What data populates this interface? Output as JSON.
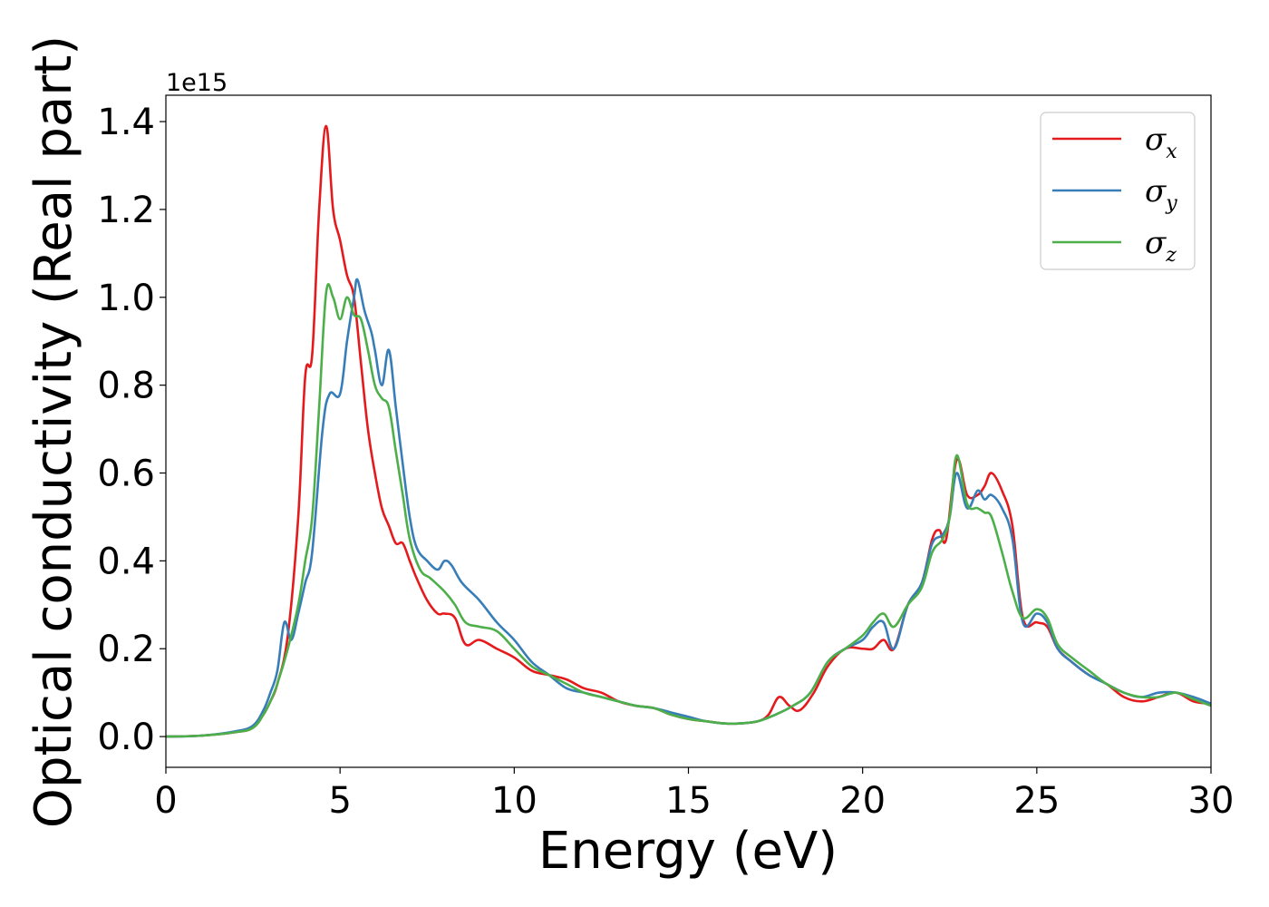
{
  "chart_data": {
    "type": "line",
    "xlabel": "Energy (eV)",
    "ylabel": "Optical conductivity (Real part)",
    "y_offset_label": "1e15",
    "xlim": [
      0,
      30
    ],
    "ylim": [
      -0.07,
      1.46
    ],
    "x_ticks": [
      "0",
      "5",
      "10",
      "15",
      "20",
      "25",
      "30"
    ],
    "y_ticks": [
      "0.0",
      "0.2",
      "0.4",
      "0.6",
      "0.8",
      "1.0",
      "1.2",
      "1.4"
    ],
    "grid": false,
    "legend_position": "upper right",
    "series": [
      {
        "name": "σx",
        "symbol": "σ",
        "subscript": "x",
        "color": "#e41a1c",
        "x": [
          0,
          1,
          2,
          2.5,
          2.8,
          3.0,
          3.2,
          3.5,
          3.8,
          4.0,
          4.2,
          4.4,
          4.6,
          4.8,
          5.0,
          5.2,
          5.4,
          5.6,
          5.8,
          6.0,
          6.2,
          6.4,
          6.6,
          6.8,
          7.0,
          7.2,
          7.5,
          7.8,
          8.0,
          8.3,
          8.6,
          9.0,
          9.5,
          10.0,
          10.5,
          11.0,
          11.5,
          12.0,
          12.5,
          13.0,
          13.5,
          14.0,
          14.5,
          15.0,
          15.5,
          16.0,
          16.5,
          17.0,
          17.3,
          17.6,
          17.9,
          18.2,
          18.6,
          19.0,
          19.5,
          20.0,
          20.3,
          20.6,
          20.9,
          21.3,
          21.7,
          22.0,
          22.2,
          22.4,
          22.7,
          23.0,
          23.3,
          23.5,
          23.7,
          24.0,
          24.3,
          24.6,
          25.0,
          25.3,
          25.6,
          26.0,
          26.5,
          27.0,
          27.5,
          28.0,
          28.5,
          29.0,
          29.5,
          30.0
        ],
        "y": [
          0.0,
          0.002,
          0.01,
          0.02,
          0.05,
          0.08,
          0.12,
          0.23,
          0.5,
          0.82,
          0.87,
          1.2,
          1.39,
          1.2,
          1.13,
          1.05,
          1.0,
          0.85,
          0.7,
          0.6,
          0.52,
          0.48,
          0.44,
          0.44,
          0.4,
          0.36,
          0.31,
          0.28,
          0.28,
          0.27,
          0.21,
          0.22,
          0.2,
          0.18,
          0.15,
          0.14,
          0.13,
          0.11,
          0.1,
          0.08,
          0.07,
          0.065,
          0.05,
          0.04,
          0.035,
          0.03,
          0.03,
          0.035,
          0.05,
          0.09,
          0.07,
          0.06,
          0.1,
          0.16,
          0.2,
          0.2,
          0.2,
          0.22,
          0.2,
          0.3,
          0.35,
          0.45,
          0.47,
          0.45,
          0.63,
          0.55,
          0.55,
          0.57,
          0.6,
          0.56,
          0.48,
          0.27,
          0.26,
          0.25,
          0.2,
          0.17,
          0.14,
          0.12,
          0.09,
          0.08,
          0.09,
          0.1,
          0.08,
          0.075
        ]
      },
      {
        "name": "σy",
        "symbol": "σ",
        "subscript": "y",
        "color": "#377eb8",
        "x": [
          0,
          1,
          2,
          2.5,
          2.8,
          3.0,
          3.2,
          3.4,
          3.6,
          3.8,
          4.0,
          4.2,
          4.5,
          4.7,
          5.0,
          5.2,
          5.4,
          5.5,
          5.7,
          5.9,
          6.0,
          6.2,
          6.4,
          6.6,
          6.8,
          7.0,
          7.2,
          7.5,
          7.8,
          8.0,
          8.2,
          8.5,
          9.0,
          9.5,
          10.0,
          10.5,
          11.0,
          11.5,
          12.0,
          12.5,
          13.0,
          13.5,
          14.0,
          14.5,
          15.0,
          15.5,
          16.0,
          16.5,
          17.0,
          17.5,
          18.0,
          18.5,
          19.0,
          19.5,
          20.0,
          20.3,
          20.6,
          20.9,
          21.3,
          21.7,
          22.0,
          22.3,
          22.5,
          22.7,
          23.0,
          23.3,
          23.5,
          23.7,
          24.0,
          24.3,
          24.6,
          25.0,
          25.3,
          25.6,
          26.0,
          26.5,
          27.0,
          27.5,
          28.0,
          28.5,
          29.0,
          29.5,
          30.0
        ],
        "y": [
          0.0,
          0.002,
          0.012,
          0.025,
          0.06,
          0.1,
          0.15,
          0.26,
          0.22,
          0.28,
          0.35,
          0.42,
          0.7,
          0.78,
          0.78,
          0.9,
          1.0,
          1.04,
          0.97,
          0.92,
          0.88,
          0.8,
          0.88,
          0.75,
          0.62,
          0.5,
          0.43,
          0.4,
          0.38,
          0.4,
          0.39,
          0.35,
          0.31,
          0.26,
          0.22,
          0.17,
          0.14,
          0.11,
          0.1,
          0.09,
          0.08,
          0.07,
          0.065,
          0.055,
          0.045,
          0.035,
          0.03,
          0.03,
          0.035,
          0.05,
          0.07,
          0.1,
          0.17,
          0.2,
          0.22,
          0.25,
          0.26,
          0.2,
          0.3,
          0.35,
          0.44,
          0.46,
          0.5,
          0.6,
          0.52,
          0.56,
          0.54,
          0.55,
          0.52,
          0.45,
          0.26,
          0.28,
          0.26,
          0.2,
          0.17,
          0.14,
          0.12,
          0.1,
          0.09,
          0.1,
          0.1,
          0.09,
          0.075
        ]
      },
      {
        "name": "σz",
        "symbol": "σ",
        "subscript": "z",
        "color": "#4daf4a",
        "x": [
          0,
          1,
          2,
          2.5,
          2.8,
          3.0,
          3.2,
          3.5,
          3.8,
          4.0,
          4.2,
          4.4,
          4.6,
          4.8,
          5.0,
          5.2,
          5.4,
          5.6,
          5.8,
          6.0,
          6.2,
          6.4,
          6.6,
          6.8,
          7.0,
          7.3,
          7.6,
          8.0,
          8.3,
          8.6,
          9.0,
          9.5,
          10.0,
          10.5,
          11.0,
          11.5,
          12.0,
          12.5,
          13.0,
          13.5,
          14.0,
          14.5,
          15.0,
          15.5,
          16.0,
          16.5,
          17.0,
          17.5,
          18.0,
          18.5,
          19.0,
          19.5,
          20.0,
          20.3,
          20.6,
          20.9,
          21.3,
          21.7,
          22.0,
          22.3,
          22.5,
          22.7,
          23.0,
          23.3,
          23.5,
          23.7,
          24.0,
          24.3,
          24.6,
          25.0,
          25.3,
          25.6,
          26.0,
          26.5,
          27.0,
          27.5,
          28.0,
          28.5,
          29.0,
          29.5,
          30.0
        ],
        "y": [
          0.0,
          0.002,
          0.01,
          0.02,
          0.05,
          0.08,
          0.12,
          0.2,
          0.3,
          0.4,
          0.5,
          0.75,
          1.01,
          1.0,
          0.95,
          1.0,
          0.96,
          0.95,
          0.88,
          0.8,
          0.77,
          0.75,
          0.65,
          0.55,
          0.45,
          0.38,
          0.36,
          0.33,
          0.3,
          0.26,
          0.25,
          0.24,
          0.2,
          0.16,
          0.14,
          0.12,
          0.1,
          0.09,
          0.08,
          0.07,
          0.065,
          0.05,
          0.04,
          0.035,
          0.03,
          0.03,
          0.035,
          0.05,
          0.07,
          0.1,
          0.17,
          0.2,
          0.23,
          0.26,
          0.28,
          0.25,
          0.3,
          0.34,
          0.42,
          0.45,
          0.5,
          0.64,
          0.53,
          0.52,
          0.51,
          0.5,
          0.42,
          0.33,
          0.27,
          0.29,
          0.27,
          0.21,
          0.18,
          0.15,
          0.12,
          0.1,
          0.09,
          0.09,
          0.1,
          0.085,
          0.07
        ]
      }
    ]
  }
}
